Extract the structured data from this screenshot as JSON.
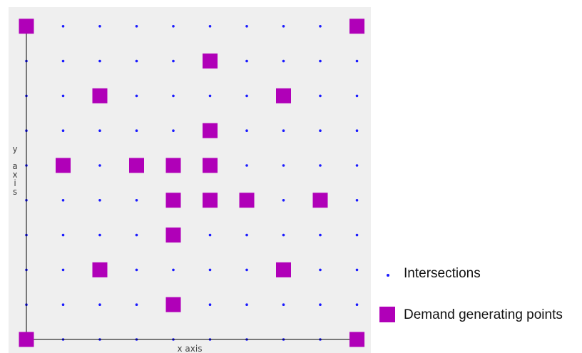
{
  "chart_data": {
    "type": "scatter",
    "xlabel": "x axis",
    "ylabel": "y axis",
    "grid_columns": 10,
    "grid_rows": 10,
    "colors": {
      "intersections": "#1a1aff",
      "demand": "#b000b8",
      "axis": "#000000",
      "panel_background": "#efefef"
    },
    "series": [
      {
        "name": "Intersections",
        "marker": "dot",
        "points": "all grid intersections (10 x 10)"
      },
      {
        "name": "Demand generating points",
        "marker": "square",
        "points": [
          [
            0,
            9
          ],
          [
            9,
            9
          ],
          [
            5,
            8
          ],
          [
            2,
            7
          ],
          [
            7,
            7
          ],
          [
            5,
            6
          ],
          [
            1,
            5
          ],
          [
            3,
            5
          ],
          [
            4,
            5
          ],
          [
            5,
            5
          ],
          [
            4,
            4
          ],
          [
            5,
            4
          ],
          [
            6,
            4
          ],
          [
            8,
            4
          ],
          [
            4,
            3
          ],
          [
            2,
            2
          ],
          [
            7,
            2
          ],
          [
            4,
            1
          ],
          [
            0,
            0
          ],
          [
            9,
            0
          ]
        ]
      }
    ]
  },
  "legend": {
    "placement": "bottom-right",
    "items": [
      {
        "label": "Intersections",
        "marker": "dot",
        "color": "#1a1aff"
      },
      {
        "label": "Demand generating points",
        "marker": "square",
        "color": "#b000b8"
      }
    ]
  }
}
